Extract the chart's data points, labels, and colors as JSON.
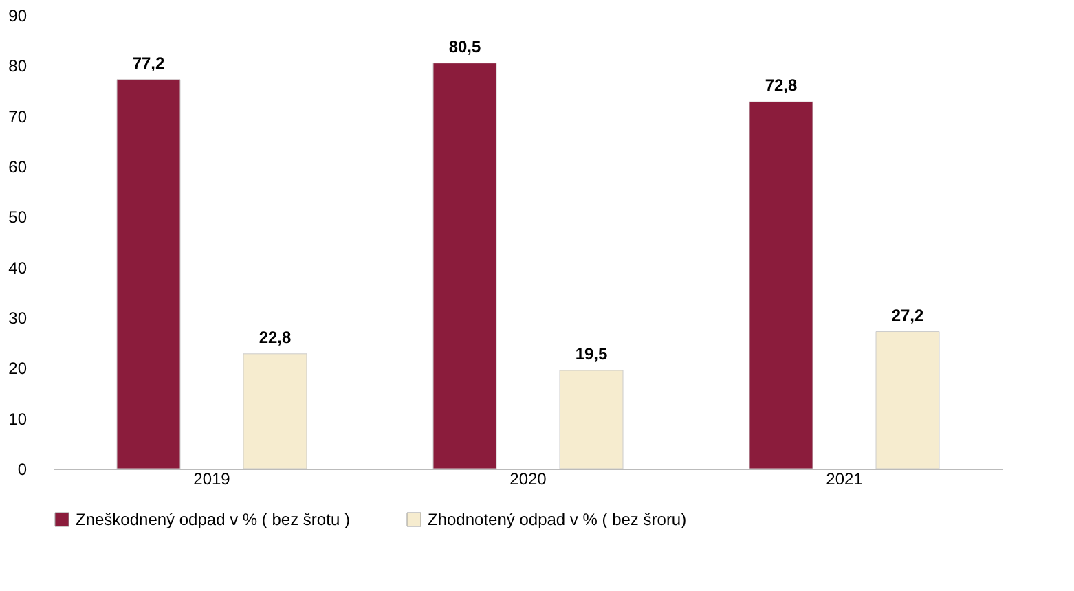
{
  "chart_data": {
    "type": "bar",
    "categories": [
      "2019",
      "2020",
      "2021"
    ],
    "series": [
      {
        "name": "Zneškodnený odpad v % ( bez šrotu )",
        "color": "#8b1c3c",
        "values": [
          77.2,
          80.5,
          72.8
        ],
        "value_labels": [
          "77,2",
          "80,5",
          "72,8"
        ]
      },
      {
        "name": "Zhodnotený odpad v % ( bez šroru)",
        "color": "#f6eccf",
        "values": [
          22.8,
          19.5,
          27.2
        ],
        "value_labels": [
          "22,8",
          "19,5",
          "27,2"
        ]
      }
    ],
    "ylim": [
      0,
      90
    ],
    "yticks": [
      0,
      10,
      20,
      30,
      40,
      50,
      60,
      70,
      80,
      90
    ],
    "grid": false,
    "legend": "bottom"
  }
}
